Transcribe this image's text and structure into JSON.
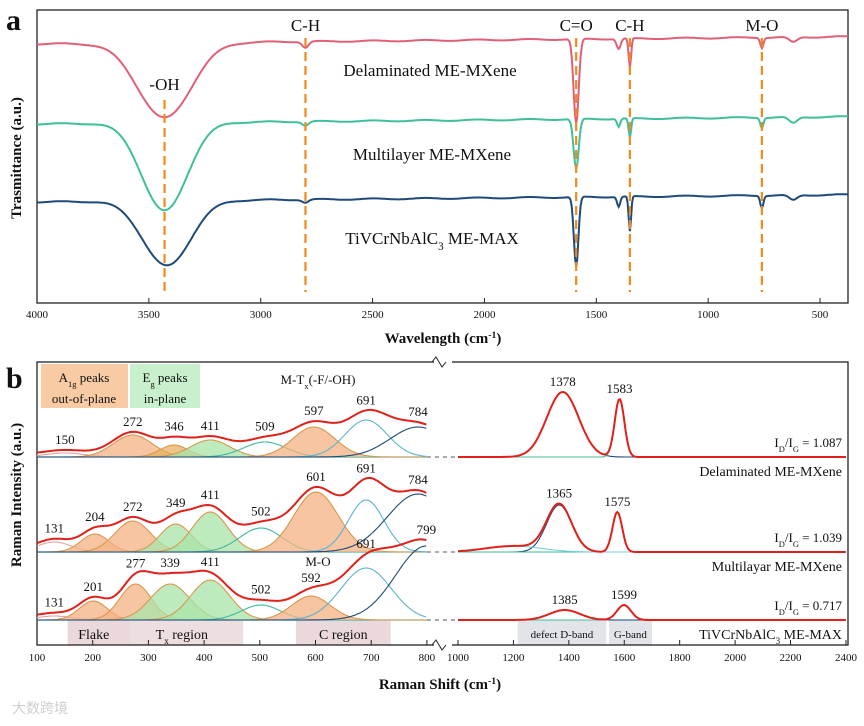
{
  "chart_data": [
    {
      "type": "line",
      "panel_label": "a",
      "xlabel": "Wavelength (cm",
      "xlabel_sup": "-1",
      "xlabel_end": ")",
      "ylabel": "Trasmittance (a.u.)",
      "xlim": [
        4000,
        375
      ],
      "xticks": [
        4000,
        3500,
        3000,
        2500,
        2000,
        1500,
        1000,
        500
      ],
      "colors": {
        "Delaminated": "#e0607a",
        "Multilayer": "#3fbf9a",
        "MAX": "#1f4a7a",
        "marker": "#f08a1c"
      },
      "series": [
        {
          "name": "Delaminated ME-MXene",
          "color": "#e0607a",
          "offset": 0,
          "bands": [
            [
              3430,
              260,
              75
            ],
            [
              2800,
              30,
              6
            ],
            [
              1590,
              25,
              85
            ],
            [
              1350,
              12,
              30
            ],
            [
              1400,
              20,
              10
            ],
            [
              760,
              15,
              10
            ],
            [
              620,
              40,
              5
            ]
          ]
        },
        {
          "name": "Multilayer ME-MXene",
          "color": "#3fbf9a",
          "offset": 80,
          "bands": [
            [
              3430,
              220,
              88
            ],
            [
              2800,
              30,
              4
            ],
            [
              1590,
              25,
              50
            ],
            [
              1350,
              12,
              20
            ],
            [
              1400,
              15,
              8
            ],
            [
              760,
              15,
              10
            ],
            [
              620,
              40,
              6
            ]
          ]
        },
        {
          "name": "TiVCrNbAlC",
          "name_sub": "3",
          "name_end": " ME-MAX",
          "color": "#1f4a7a",
          "offset": 158,
          "bands": [
            [
              3420,
              230,
              65
            ],
            [
              2800,
              30,
              3
            ],
            [
              1590,
              22,
              70
            ],
            [
              1350,
              12,
              35
            ],
            [
              1400,
              15,
              10
            ],
            [
              760,
              15,
              12
            ],
            [
              620,
              40,
              5
            ]
          ]
        }
      ],
      "annotations": [
        {
          "label": "-OH",
          "x": 3430
        },
        {
          "label": "C-H",
          "x": 2800
        },
        {
          "label": "C=O",
          "x": 1590
        },
        {
          "label": "C-H",
          "x": 1350
        },
        {
          "label": "M-O",
          "x": 760
        }
      ]
    },
    {
      "type": "line",
      "panel_label": "b",
      "xlabel": "Raman Shift (cm",
      "xlabel_sup": "-1",
      "xlabel_end": ")",
      "ylabel": "Raman Intensity (a.u.)",
      "xlim_left": [
        100,
        800
      ],
      "xlim_right": [
        1000,
        2400
      ],
      "xticks_left": [
        100,
        200,
        300,
        400,
        500,
        600,
        700,
        800
      ],
      "xticks_right": [
        1000,
        1200,
        1400,
        1600,
        1800,
        2000,
        2200,
        2400
      ],
      "legend_boxes": {
        "a1g_line1": "A",
        "a1g_sub": "1g",
        "a1g_line1_end": " peaks",
        "a1g_line2": "out-of-plane",
        "eg_line1": "E",
        "eg_sub": "g",
        "eg_line1_end": " peaks",
        "eg_line2": "in-plane"
      },
      "mt_label": "M-T",
      "mt_sub": "x",
      "mt_end": "(-F/-OH)",
      "mo_label": "M-O",
      "regions": {
        "flake": "Flake",
        "tx": "T",
        "tx_sub": "x",
        "tx_end": " region",
        "c": "C region",
        "d": "defect D-band",
        "g": "G-band"
      },
      "series": [
        {
          "name": "Delaminated ME-MXene",
          "ratio_label": "= 1.087",
          "components": [
            [
              150,
              35,
              4,
              "#e8a0a0",
              false
            ],
            [
              272,
              35,
              22,
              "#f4b183",
              true
            ],
            [
              346,
              25,
              12,
              "#e8b060",
              true
            ],
            [
              411,
              35,
              17,
              "#a8e4a8",
              true
            ],
            [
              509,
              38,
              15,
              "#40b8a0",
              false
            ],
            [
              597,
              38,
              30,
              "#f4b183",
              true
            ],
            [
              691,
              38,
              37,
              "#5ab4cc",
              false
            ],
            [
              784,
              50,
              30,
              "#1f4a7a",
              false
            ]
          ],
          "right": [
            [
              1378,
              115,
              65,
              "#1f4a7a"
            ],
            [
              1583,
              35,
              58,
              "#3fbf9a"
            ]
          ],
          "labels_left": [
            "150",
            "272",
            "346",
            "411",
            "509",
            "597",
            "691",
            "784"
          ],
          "labels_right": [
            "1378",
            "1583"
          ]
        },
        {
          "name": "Multilayar ME-MXene",
          "ratio_label": "= 1.039",
          "components": [
            [
              131,
              30,
              10,
              "#e8a0a0",
              false
            ],
            [
              204,
              25,
              18,
              "#f4b183",
              true
            ],
            [
              272,
              32,
              31,
              "#f4b183",
              true
            ],
            [
              349,
              28,
              28,
              "#a8e4a8",
              true
            ],
            [
              411,
              32,
              40,
              "#a8e4a8",
              true
            ],
            [
              502,
              38,
              24,
              "#40b8a0",
              false
            ],
            [
              601,
              40,
              60,
              "#f4b183",
              true
            ],
            [
              691,
              32,
              52,
              "#5ab4cc",
              false
            ],
            [
              784,
              55,
              58,
              "#1f4a7a",
              false
            ]
          ],
          "right": [
            [
              1365,
              90,
              47,
              "#1f4a7a"
            ],
            [
              1575,
              35,
              40,
              "#3fbf9a"
            ],
            [
              1200,
              200,
              6,
              "#7ad0e0"
            ]
          ],
          "labels_left": [
            "131",
            "204",
            "272",
            "349",
            "411",
            "502",
            "601",
            "691",
            "784"
          ],
          "labels_right": [
            "1365",
            "1575"
          ]
        },
        {
          "name": "TiVCrNbAlC",
          "name_sub": "3",
          "name_end": " ME-MAX",
          "ratio_label": "= 0.717",
          "components": [
            [
              131,
              30,
              4,
              "#e8a0a0",
              false
            ],
            [
              201,
              25,
              19,
              "#f4b183",
              true
            ],
            [
              277,
              28,
              36,
              "#f4b183",
              true
            ],
            [
              339,
              35,
              36,
              "#a8e4a8",
              true
            ],
            [
              411,
              35,
              40,
              "#a8e4a8",
              true
            ],
            [
              502,
              35,
              15,
              "#40b8a0",
              false
            ],
            [
              592,
              35,
              24,
              "#f4b183",
              true
            ],
            [
              691,
              45,
              52,
              "#5ab4cc",
              false
            ],
            [
              799,
              55,
              74,
              "#1f4a7a",
              false
            ]
          ],
          "right": [
            [
              1385,
              110,
              10,
              "#1f4a7a"
            ],
            [
              1599,
              50,
              15,
              "#3fbf9a"
            ]
          ],
          "labels_left": [
            "131",
            "201",
            "277",
            "339",
            "411",
            "502",
            "592",
            "691",
            "799"
          ],
          "labels_right": [
            "1385",
            "1599"
          ]
        }
      ]
    }
  ],
  "ratio_prefix": {
    "I": "I",
    "D": "D",
    "slash": "/I",
    "G": "G"
  },
  "watermark": "大数跨境"
}
